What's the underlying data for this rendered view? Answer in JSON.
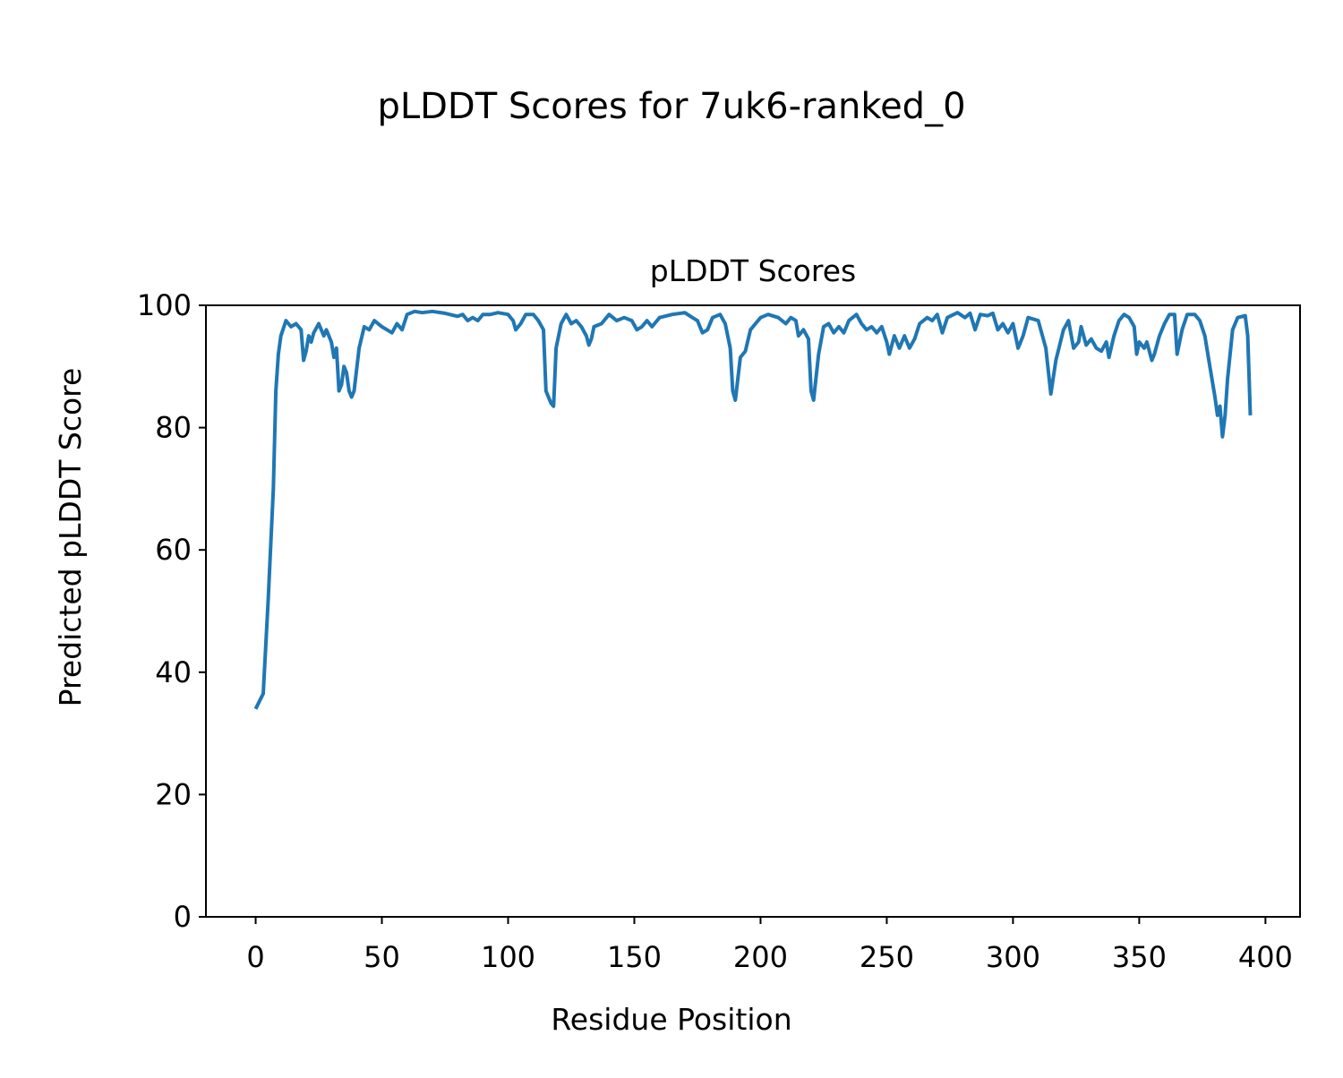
{
  "chart_data": {
    "type": "line",
    "title": "pLDDT Scores for 7uk6-ranked_0",
    "subtitle": "pLDDT Scores",
    "xlabel": "Residue Position",
    "ylabel": "Predicted pLDDT Score",
    "color": "#1f77b4",
    "x": [
      0,
      3,
      5,
      7,
      8,
      9,
      10,
      12,
      14,
      16,
      18,
      19,
      20,
      21,
      22,
      23,
      25,
      27,
      28,
      30,
      31,
      32,
      33,
      34,
      35,
      36,
      37,
      38,
      39,
      41,
      43,
      45,
      47,
      50,
      52,
      54,
      56,
      58,
      60,
      63,
      66,
      70,
      75,
      80,
      82,
      84,
      86,
      88,
      90,
      93,
      96,
      100,
      102,
      103,
      105,
      107,
      110,
      112,
      114,
      115,
      117,
      118,
      119,
      121,
      123,
      125,
      127,
      129,
      131,
      132,
      133,
      134,
      137,
      140,
      143,
      146,
      149,
      151,
      153,
      155,
      157,
      160,
      165,
      170,
      173,
      175,
      177,
      179,
      181,
      184,
      186,
      188,
      189,
      190,
      192,
      194,
      196,
      198,
      200,
      203,
      207,
      210,
      212,
      214,
      215,
      217,
      219,
      220,
      221,
      223,
      225,
      227,
      229,
      231,
      233,
      235,
      238,
      240,
      242,
      244,
      246,
      248,
      250,
      251,
      253,
      255,
      257,
      259,
      261,
      263,
      266,
      268,
      270,
      272,
      274,
      278,
      281,
      283,
      285,
      287,
      290,
      292,
      294,
      296,
      298,
      300,
      302,
      304,
      306,
      310,
      313,
      315,
      317,
      320,
      322,
      324,
      326,
      327,
      329,
      331,
      333,
      335,
      337,
      338,
      340,
      342,
      344,
      346,
      348,
      349,
      350,
      352,
      353,
      355,
      356,
      358,
      360,
      362,
      364,
      365,
      367,
      369,
      372,
      374,
      376,
      378,
      380,
      381,
      382,
      383,
      384,
      385,
      387,
      389,
      392,
      393,
      394
    ],
    "values": [
      34,
      36.5,
      52,
      70,
      86,
      92,
      95,
      97.5,
      96.5,
      97,
      96,
      91,
      92.5,
      95,
      94,
      95.5,
      97,
      95,
      96,
      94,
      91.5,
      93,
      86,
      87,
      90,
      89,
      86,
      85,
      86,
      93,
      96.5,
      96,
      97.5,
      96.5,
      96,
      95.5,
      97,
      96,
      98.5,
      99,
      98.8,
      99,
      98.7,
      98.2,
      98.5,
      97.5,
      98,
      97.5,
      98.5,
      98.5,
      98.8,
      98.5,
      97.5,
      96,
      97,
      98.5,
      98.5,
      97.5,
      96,
      86,
      84,
      83.5,
      93,
      97,
      98.5,
      97,
      97.5,
      96.5,
      95,
      93.5,
      94.5,
      96.5,
      97,
      98.5,
      97.5,
      98,
      97.5,
      96,
      96.5,
      97.5,
      96.5,
      98,
      98.5,
      98.8,
      98,
      97.5,
      95.5,
      96,
      98,
      98.5,
      97,
      93,
      86,
      84.5,
      91.5,
      92.5,
      96,
      97,
      98,
      98.5,
      98,
      97,
      98,
      97.5,
      95,
      96,
      94.5,
      86,
      84.5,
      92,
      96.5,
      97,
      95.5,
      96.5,
      95.5,
      97.5,
      98.5,
      97,
      96,
      96.5,
      95.5,
      96.5,
      94,
      92,
      95,
      93,
      95,
      93,
      94.5,
      97,
      98,
      97.5,
      98.5,
      95.5,
      98,
      98.8,
      98,
      98.7,
      96,
      98.5,
      98.3,
      98.7,
      96,
      97,
      95.5,
      97,
      93,
      95,
      98,
      97.5,
      93,
      85.5,
      91,
      96,
      97.5,
      93,
      94,
      96.5,
      93.5,
      94.5,
      93,
      92.5,
      94,
      91.5,
      95,
      97.5,
      98.5,
      98,
      96.5,
      92,
      94,
      93,
      94,
      91,
      92,
      95,
      97,
      98.5,
      98.5,
      92,
      96,
      98.5,
      98.5,
      97.5,
      95,
      90,
      85,
      82,
      83.5,
      78.5,
      82,
      88,
      96,
      98,
      98.3,
      95,
      82
    ],
    "xlim": [
      -19.7,
      413.7
    ],
    "xticks": [
      0,
      50,
      100,
      150,
      200,
      250,
      300,
      350,
      400
    ],
    "ylim": [
      0,
      100
    ],
    "yticks": [
      0,
      20,
      40,
      60,
      80,
      100
    ]
  }
}
